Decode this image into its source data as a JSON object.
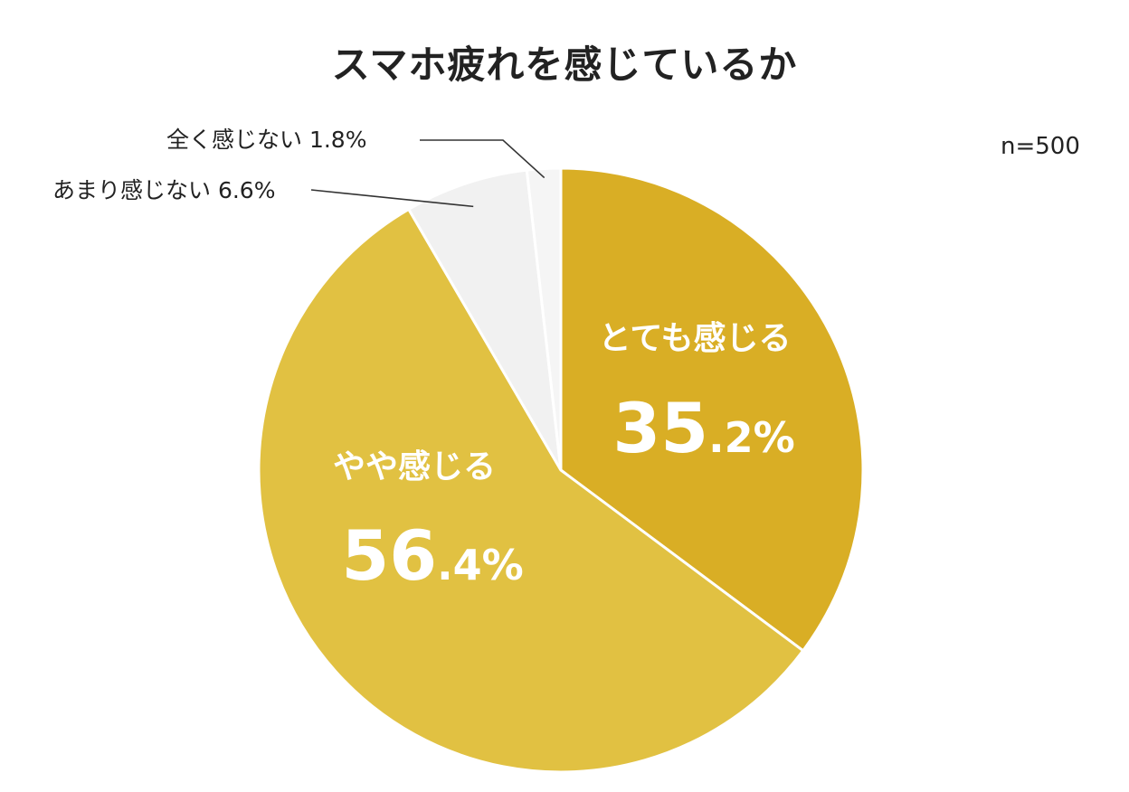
{
  "chart_data": {
    "type": "pie",
    "title": "スマホ疲れを感じているか",
    "annotation": "n=500",
    "categories": [
      "とても感じる",
      "やや感じる",
      "あまり感じない",
      "全く感じない"
    ],
    "values": [
      35.2,
      56.4,
      6.6,
      1.8
    ],
    "value_labels": [
      {
        "int": "35",
        "dec": ".2%"
      },
      {
        "int": "56",
        "dec": ".4%"
      },
      {
        "text": "6.6%"
      },
      {
        "text": "1.8%"
      }
    ],
    "colors": [
      "#D9AE25",
      "#E1C142",
      "#F1F1F1",
      "#F5F5F5"
    ],
    "start_angle": "12 o'clock",
    "direction": "clockwise"
  }
}
